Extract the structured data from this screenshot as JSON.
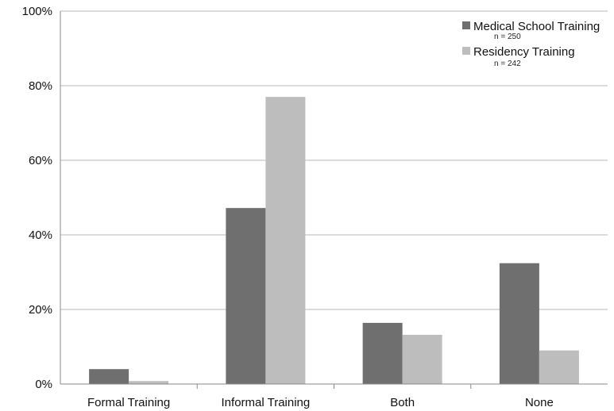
{
  "chart_data": {
    "type": "bar",
    "title": "",
    "xlabel": "",
    "ylabel": "",
    "categories": [
      "Formal Training",
      "Informal Training",
      "Both",
      "None"
    ],
    "series": [
      {
        "name": "Medical School Training",
        "sample": "n = 250",
        "color": "#6f6f6f",
        "values": [
          4,
          47.2,
          16.4,
          32.4
        ]
      },
      {
        "name": "Residency Training",
        "sample": "n = 242",
        "color": "#bdbdbd",
        "values": [
          0.8,
          77,
          13.2,
          9
        ]
      }
    ],
    "ylim": [
      0,
      100
    ],
    "y_ticks": [
      "0%",
      "20%",
      "40%",
      "60%",
      "80%",
      "100%"
    ],
    "y_tick_values": [
      0,
      20,
      40,
      60,
      80,
      100
    ],
    "grid": true,
    "legend_position": "top-right"
  }
}
